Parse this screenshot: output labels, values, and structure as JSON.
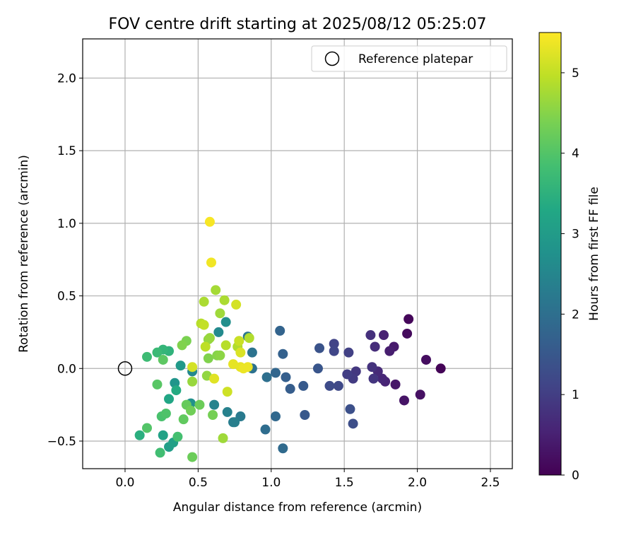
{
  "chart_data": {
    "type": "scatter",
    "title": "FOV centre drift starting at 2025/08/12 05:25:07",
    "xlabel": "Angular distance from reference (arcmin)",
    "ylabel": "Rotation from reference (arcmin)",
    "xlim": [
      -0.29,
      2.65
    ],
    "ylim": [
      -0.69,
      2.27
    ],
    "xticks": [
      0.0,
      0.5,
      1.0,
      1.5,
      2.0,
      2.5
    ],
    "xtick_labels": [
      "0.0",
      "0.5",
      "1.0",
      "1.5",
      "2.0",
      "2.5"
    ],
    "yticks": [
      -0.5,
      0.0,
      0.5,
      1.0,
      1.5,
      2.0
    ],
    "ytick_labels": [
      "−0.5",
      "0.0",
      "0.5",
      "1.0",
      "1.5",
      "2.0"
    ],
    "grid": true,
    "legend": {
      "placement": "top-right",
      "entries": [
        "Reference platepar"
      ]
    },
    "reference_point": {
      "x": 0.0,
      "y": 0.0,
      "label": "Reference platepar"
    },
    "colorbar": {
      "label": "Hours from first FF file",
      "colormap": "viridis",
      "range": [
        0,
        5.5
      ],
      "ticks": [
        0,
        1,
        2,
        3,
        4,
        5
      ],
      "tick_labels": [
        "0",
        "1",
        "2",
        "3",
        "4",
        "5"
      ]
    },
    "points": [
      {
        "x": 2.16,
        "y": 0.0,
        "t": 0.05
      },
      {
        "x": 1.94,
        "y": 0.34,
        "t": 0.1
      },
      {
        "x": 1.93,
        "y": 0.24,
        "t": 0.15
      },
      {
        "x": 2.06,
        "y": 0.06,
        "t": 0.2
      },
      {
        "x": 2.02,
        "y": -0.18,
        "t": 0.25
      },
      {
        "x": 1.91,
        "y": -0.22,
        "t": 0.3
      },
      {
        "x": 1.85,
        "y": -0.11,
        "t": 0.35
      },
      {
        "x": 1.84,
        "y": 0.15,
        "t": 0.4
      },
      {
        "x": 1.81,
        "y": 0.12,
        "t": 0.45
      },
      {
        "x": 1.77,
        "y": 0.23,
        "t": 0.5
      },
      {
        "x": 1.78,
        "y": -0.09,
        "t": 0.55
      },
      {
        "x": 1.76,
        "y": -0.07,
        "t": 0.6
      },
      {
        "x": 1.73,
        "y": -0.02,
        "t": 0.65
      },
      {
        "x": 1.71,
        "y": 0.15,
        "t": 0.7
      },
      {
        "x": 1.68,
        "y": 0.23,
        "t": 0.75
      },
      {
        "x": 1.69,
        "y": 0.01,
        "t": 0.8
      },
      {
        "x": 1.7,
        "y": -0.07,
        "t": 0.85
      },
      {
        "x": 1.58,
        "y": -0.02,
        "t": 0.9
      },
      {
        "x": 1.56,
        "y": -0.07,
        "t": 0.95
      },
      {
        "x": 1.52,
        "y": -0.04,
        "t": 1.0
      },
      {
        "x": 1.53,
        "y": 0.11,
        "t": 1.05
      },
      {
        "x": 1.43,
        "y": 0.17,
        "t": 1.1
      },
      {
        "x": 1.43,
        "y": 0.12,
        "t": 1.15
      },
      {
        "x": 1.46,
        "y": -0.12,
        "t": 1.2
      },
      {
        "x": 1.4,
        "y": -0.12,
        "t": 1.25
      },
      {
        "x": 1.56,
        "y": -0.38,
        "t": 1.3
      },
      {
        "x": 1.54,
        "y": -0.28,
        "t": 1.35
      },
      {
        "x": 1.33,
        "y": 0.14,
        "t": 1.4
      },
      {
        "x": 1.32,
        "y": 0.0,
        "t": 1.45
      },
      {
        "x": 1.23,
        "y": -0.32,
        "t": 1.5
      },
      {
        "x": 1.22,
        "y": -0.12,
        "t": 1.55
      },
      {
        "x": 1.13,
        "y": -0.14,
        "t": 1.6
      },
      {
        "x": 1.1,
        "y": -0.06,
        "t": 1.65
      },
      {
        "x": 1.08,
        "y": 0.1,
        "t": 1.7
      },
      {
        "x": 1.06,
        "y": 0.26,
        "t": 1.75
      },
      {
        "x": 1.03,
        "y": -0.03,
        "t": 1.8
      },
      {
        "x": 1.03,
        "y": -0.33,
        "t": 1.85
      },
      {
        "x": 1.08,
        "y": -0.55,
        "t": 1.9
      },
      {
        "x": 0.96,
        "y": -0.42,
        "t": 1.95
      },
      {
        "x": 0.97,
        "y": -0.06,
        "t": 2.0
      },
      {
        "x": 0.87,
        "y": 0.0,
        "t": 2.05
      },
      {
        "x": 0.87,
        "y": 0.11,
        "t": 2.1
      },
      {
        "x": 0.84,
        "y": 0.22,
        "t": 2.15
      },
      {
        "x": 0.79,
        "y": -0.33,
        "t": 2.25
      },
      {
        "x": 0.74,
        "y": -0.37,
        "t": 2.3
      },
      {
        "x": 0.75,
        "y": -0.37,
        "t": 2.35
      },
      {
        "x": 0.7,
        "y": -0.3,
        "t": 2.4
      },
      {
        "x": 0.61,
        "y": -0.25,
        "t": 2.45
      },
      {
        "x": 0.46,
        "y": -0.02,
        "t": 2.55
      },
      {
        "x": 0.64,
        "y": 0.25,
        "t": 2.6
      },
      {
        "x": 0.69,
        "y": 0.32,
        "t": 2.7
      },
      {
        "x": 0.45,
        "y": -0.24,
        "t": 2.75
      },
      {
        "x": 0.34,
        "y": -0.1,
        "t": 2.85
      },
      {
        "x": 0.38,
        "y": 0.02,
        "t": 2.95
      },
      {
        "x": 0.3,
        "y": -0.54,
        "t": 3.05
      },
      {
        "x": 0.33,
        "y": -0.51,
        "t": 3.1
      },
      {
        "x": 0.26,
        "y": -0.46,
        "t": 3.15
      },
      {
        "x": 0.3,
        "y": -0.21,
        "t": 3.25
      },
      {
        "x": 0.35,
        "y": -0.15,
        "t": 3.35
      },
      {
        "x": 0.1,
        "y": -0.46,
        "t": 3.45
      },
      {
        "x": 0.3,
        "y": 0.12,
        "t": 3.55
      },
      {
        "x": 0.26,
        "y": 0.13,
        "t": 3.6
      },
      {
        "x": 0.22,
        "y": 0.11,
        "t": 3.7
      },
      {
        "x": 0.15,
        "y": 0.08,
        "t": 3.75
      },
      {
        "x": 0.24,
        "y": -0.58,
        "t": 3.8
      },
      {
        "x": 0.36,
        "y": -0.47,
        "t": 3.85
      },
      {
        "x": 0.25,
        "y": -0.33,
        "t": 3.9
      },
      {
        "x": 0.28,
        "y": -0.31,
        "t": 3.95
      },
      {
        "x": 0.15,
        "y": -0.41,
        "t": 4.0
      },
      {
        "x": 0.22,
        "y": -0.11,
        "t": 4.05
      },
      {
        "x": 0.26,
        "y": 0.06,
        "t": 4.1
      },
      {
        "x": 0.4,
        "y": -0.35,
        "t": 4.15
      },
      {
        "x": 0.42,
        "y": -0.25,
        "t": 4.2
      },
      {
        "x": 0.46,
        "y": -0.61,
        "t": 4.25
      },
      {
        "x": 0.51,
        "y": -0.25,
        "t": 4.25
      },
      {
        "x": 0.45,
        "y": -0.29,
        "t": 4.3
      },
      {
        "x": 0.6,
        "y": -0.32,
        "t": 4.35
      },
      {
        "x": 0.42,
        "y": 0.19,
        "t": 4.4
      },
      {
        "x": 0.39,
        "y": 0.16,
        "t": 4.45
      },
      {
        "x": 0.57,
        "y": 0.07,
        "t": 4.45
      },
      {
        "x": 0.63,
        "y": 0.09,
        "t": 4.5
      },
      {
        "x": 0.65,
        "y": 0.09,
        "t": 4.55
      },
      {
        "x": 0.56,
        "y": -0.05,
        "t": 4.6
      },
      {
        "x": 0.57,
        "y": 0.2,
        "t": 4.6
      },
      {
        "x": 0.58,
        "y": 0.21,
        "t": 4.65
      },
      {
        "x": 0.46,
        "y": -0.09,
        "t": 4.65
      },
      {
        "x": 0.67,
        "y": -0.48,
        "t": 4.7
      },
      {
        "x": 0.65,
        "y": 0.38,
        "t": 4.7
      },
      {
        "x": 0.62,
        "y": 0.54,
        "t": 4.75
      },
      {
        "x": 0.68,
        "y": 0.47,
        "t": 4.8
      },
      {
        "x": 0.54,
        "y": 0.46,
        "t": 4.8
      },
      {
        "x": 0.77,
        "y": 0.15,
        "t": 4.85
      },
      {
        "x": 0.85,
        "y": 0.21,
        "t": 4.85
      },
      {
        "x": 0.69,
        "y": 0.16,
        "t": 4.9
      },
      {
        "x": 0.52,
        "y": 0.31,
        "t": 4.9
      },
      {
        "x": 0.55,
        "y": 0.15,
        "t": 4.95
      },
      {
        "x": 0.54,
        "y": 0.3,
        "t": 5.0
      },
      {
        "x": 0.78,
        "y": 0.19,
        "t": 5.05
      },
      {
        "x": 0.7,
        "y": -0.16,
        "t": 5.1
      },
      {
        "x": 0.46,
        "y": 0.01,
        "t": 5.15
      },
      {
        "x": 0.76,
        "y": 0.44,
        "t": 5.15
      },
      {
        "x": 0.79,
        "y": 0.11,
        "t": 5.2
      },
      {
        "x": 0.61,
        "y": -0.07,
        "t": 5.25
      },
      {
        "x": 0.74,
        "y": 0.03,
        "t": 5.3
      },
      {
        "x": 0.79,
        "y": 0.01,
        "t": 5.3
      },
      {
        "x": 0.81,
        "y": 0.0,
        "t": 5.35
      },
      {
        "x": 0.84,
        "y": 0.01,
        "t": 5.35
      },
      {
        "x": 0.59,
        "y": 0.73,
        "t": 5.4
      },
      {
        "x": 0.58,
        "y": 1.01,
        "t": 5.45
      }
    ]
  }
}
